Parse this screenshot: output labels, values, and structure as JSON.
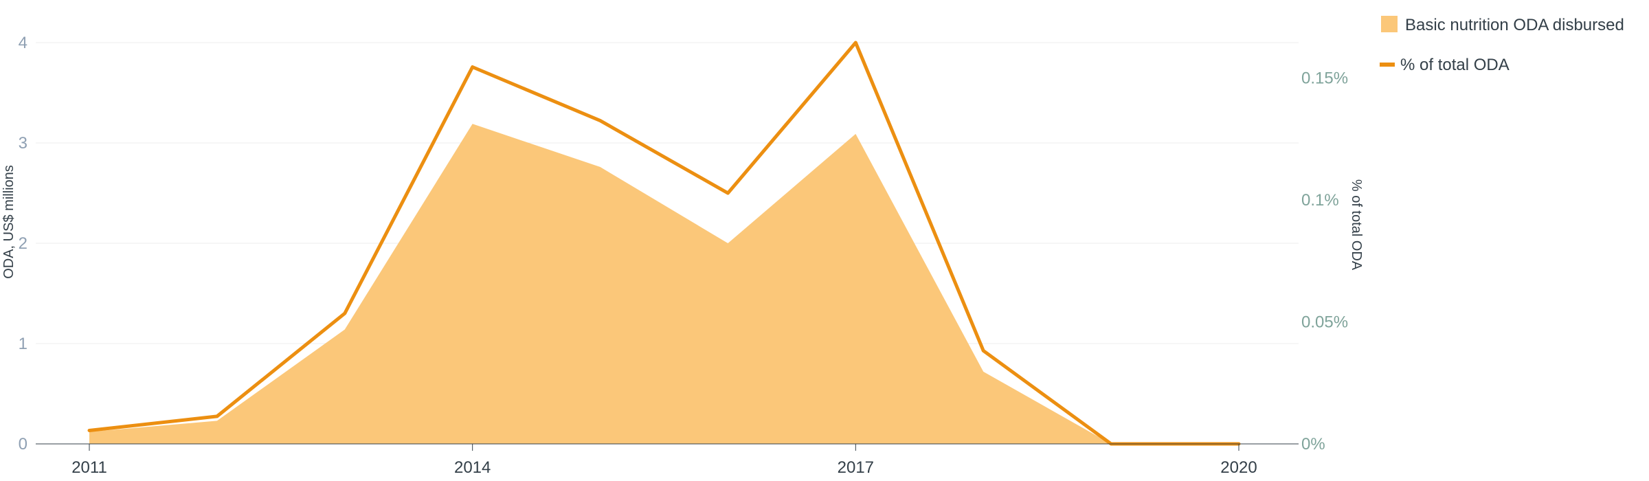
{
  "chart_data": {
    "type": "area",
    "x": [
      2011,
      2012,
      2013,
      2014,
      2015,
      2016,
      2017,
      2018,
      2019,
      2020
    ],
    "xticks": [
      "2011",
      "2014",
      "2017",
      "2020"
    ],
    "ylabel": "ODA, US$ millions",
    "ylabel_right": "% of total ODA",
    "ylim": [
      0,
      4
    ],
    "ylim_right": [
      0,
      0.1645
    ],
    "yticks": [
      "0",
      "1",
      "2",
      "3",
      "4"
    ],
    "yticks_right": [
      {
        "value": 0,
        "label": "0%"
      },
      {
        "value": 0.05,
        "label": "0.05%"
      },
      {
        "value": 0.1,
        "label": "0.1%"
      },
      {
        "value": 0.15,
        "label": "0.15%"
      }
    ],
    "grid": true,
    "legend_position": "top-right",
    "series": [
      {
        "name": "Basic nutrition ODA disbursed",
        "kind": "area",
        "axis": "left",
        "color": "#fbc779",
        "values": [
          0.12,
          0.23,
          1.14,
          3.19,
          2.76,
          2.0,
          3.09,
          0.72,
          0.0,
          0.0
        ]
      },
      {
        "name": "% of total ODA",
        "kind": "line",
        "axis": "right",
        "color": "#ec8f11",
        "values": [
          0.0055,
          0.0113,
          0.0535,
          0.1545,
          0.1325,
          0.1028,
          0.1645,
          0.0382,
          0.0,
          0.0
        ]
      }
    ]
  }
}
